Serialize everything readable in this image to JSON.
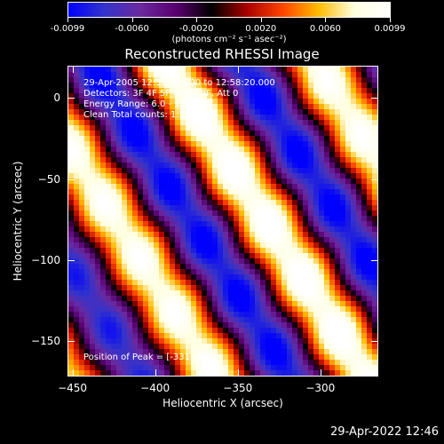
{
  "colorbar": {
    "tick_labels": [
      "-0.0099",
      "-0.0060",
      "-0.0020",
      "0.0020",
      "0.0060",
      "0.0099"
    ],
    "units_label": "(photons cm⁻² s⁻¹ asec⁻²)",
    "range": [
      -0.0099,
      0.0099
    ],
    "colormap": [
      "#0000ff",
      "#3333cc",
      "#6a2aa0",
      "#5a0070",
      "#000000",
      "#aa0000",
      "#ff4400",
      "#ffbb00",
      "#ffffe0",
      "#ffffff"
    ]
  },
  "chart_data": {
    "type": "heatmap",
    "title": "Reconstructed RHESSI Image",
    "xlabel": "Heliocentric X (arcsec)",
    "ylabel": "Heliocentric Y (arcsec)",
    "xlim": [
      -453,
      -265
    ],
    "ylim": [
      -172,
      20
    ],
    "x_ticks": [
      -450,
      -400,
      -350,
      -300
    ],
    "y_ticks": [
      0,
      -50,
      -100,
      -150
    ],
    "x_tick_labels": [
      "−450",
      "−400",
      "−350",
      "−300"
    ],
    "y_tick_labels": [
      "0",
      "−50",
      "−100",
      "−150"
    ],
    "peak": [
      -331,
      -78
    ],
    "fringe_band_angle_deg": -58,
    "annotations": {
      "time_range": "29-Apr-2005 12:52:20.000 to 12:58:20.000",
      "detectors": "Detectors: 3F 4F 5F 6F 7F 8F, Att 0",
      "energy": "Energy Range: 6.0 - 12.0 keV",
      "clean": "Clean    Total counts: 1.25E+04",
      "peak_position": "Position of Peak = [-331,-78]"
    }
  },
  "footer": {
    "timestamp": "29-Apr-2022 12:46"
  }
}
